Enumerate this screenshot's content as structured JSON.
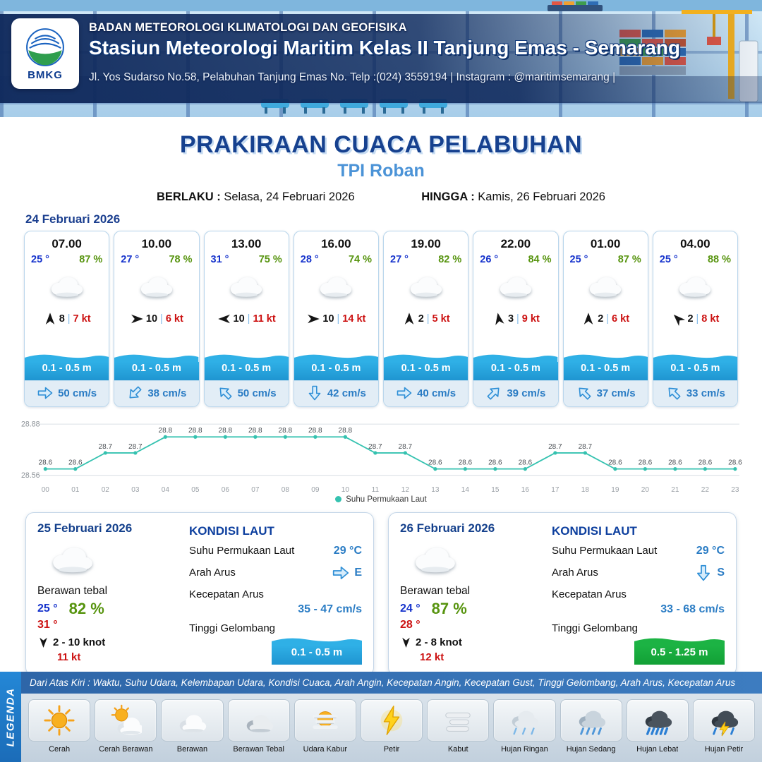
{
  "header": {
    "logo_text": "BMKG",
    "org": "BADAN METEOROLOGI KLIMATOLOGI DAN GEOFISIKA",
    "station": "Stasiun Meteorologi Maritim Kelas II Tanjung Emas - Semarang",
    "address": "Jl. Yos Sudarso No.58, Pelabuhan Tanjung Emas No. Telp :(024) 3559194 | Instagram : @maritimsemarang |"
  },
  "title": {
    "main": "PRAKIRAAN CUACA PELABUHAN",
    "location": "TPI Roban",
    "berlaku_label": "BERLAKU :",
    "berlaku_value": "Selasa, 24 Februari 2026",
    "hingga_label": "HINGGA :",
    "hingga_value": "Kamis, 26 Februari 2026"
  },
  "forecast": {
    "date": "24 Februari 2026",
    "cards": [
      {
        "time": "07.00",
        "temp": "25 °",
        "rh": "87 %",
        "wind_speed": "8",
        "gust": "7 kt",
        "wind_dir_deg": 0,
        "wave": "0.1 - 0.5 m",
        "current": "50 cm/s",
        "current_dir_deg": 90
      },
      {
        "time": "10.00",
        "temp": "27 °",
        "rh": "78 %",
        "wind_speed": "10",
        "gust": "6 kt",
        "wind_dir_deg": 90,
        "wave": "0.1 - 0.5 m",
        "current": "38 cm/s",
        "current_dir_deg": 225
      },
      {
        "time": "13.00",
        "temp": "31 °",
        "rh": "75 %",
        "wind_speed": "10",
        "gust": "11 kt",
        "wind_dir_deg": 270,
        "wave": "0.1 - 0.5 m",
        "current": "50 cm/s",
        "current_dir_deg": 315
      },
      {
        "time": "16.00",
        "temp": "28 °",
        "rh": "74 %",
        "wind_speed": "10",
        "gust": "14 kt",
        "wind_dir_deg": 90,
        "wave": "0.1 - 0.5 m",
        "current": "42 cm/s",
        "current_dir_deg": 180
      },
      {
        "time": "19.00",
        "temp": "27 °",
        "rh": "82 %",
        "wind_speed": "2",
        "gust": "5 kt",
        "wind_dir_deg": 0,
        "wave": "0.1 - 0.5 m",
        "current": "40 cm/s",
        "current_dir_deg": 90
      },
      {
        "time": "22.00",
        "temp": "26 °",
        "rh": "84 %",
        "wind_speed": "3",
        "gust": "9 kt",
        "wind_dir_deg": 350,
        "wave": "0.1 - 0.5 m",
        "current": "39 cm/s",
        "current_dir_deg": 45
      },
      {
        "time": "01.00",
        "temp": "25 °",
        "rh": "87 %",
        "wind_speed": "2",
        "gust": "6 kt",
        "wind_dir_deg": 0,
        "wave": "0.1 - 0.5 m",
        "current": "37 cm/s",
        "current_dir_deg": 315
      },
      {
        "time": "04.00",
        "temp": "25 °",
        "rh": "88 %",
        "wind_speed": "2",
        "gust": "8 kt",
        "wind_dir_deg": 315,
        "wave": "0.1 - 0.5 m",
        "current": "33 cm/s",
        "current_dir_deg": 315
      }
    ]
  },
  "chart_data": {
    "type": "line",
    "x": [
      "00",
      "01",
      "02",
      "03",
      "04",
      "05",
      "06",
      "07",
      "08",
      "09",
      "10",
      "11",
      "12",
      "13",
      "14",
      "15",
      "16",
      "17",
      "18",
      "19",
      "20",
      "21",
      "22",
      "23"
    ],
    "series": [
      {
        "name": "Suhu Permukaan Laut",
        "color": "#35c2b0",
        "values": [
          28.6,
          28.6,
          28.7,
          28.7,
          28.8,
          28.8,
          28.8,
          28.8,
          28.8,
          28.8,
          28.8,
          28.7,
          28.7,
          28.6,
          28.6,
          28.6,
          28.6,
          28.7,
          28.7,
          28.6,
          28.6,
          28.6,
          28.6,
          28.6
        ]
      }
    ],
    "ylim": [
      28.56,
      28.88
    ],
    "yticks": [
      28.56,
      28.88
    ],
    "legend_position": "bottom",
    "grid": true
  },
  "daily": [
    {
      "date": "25 Februari 2026",
      "condition": "Berawan tebal",
      "temp_min": "25 °",
      "temp_max": "31 °",
      "rh": "82 %",
      "wind_dir_deg": 180,
      "wind_range": "2  - 10 knot",
      "gust": "11 kt",
      "sea": {
        "title": "KONDISI LAUT",
        "sst_label": "Suhu Permukaan Laut",
        "sst": "29 °C",
        "current_dir_label": "Arah Arus",
        "current_dir": "E",
        "current_dir_deg": 90,
        "current_speed_label": "Kecepatan Arus",
        "current_speed": "35 - 47 cm/s",
        "wave_label": "Tinggi Gelombang",
        "wave": "0.1 - 0.5 m",
        "wave_color": "#1f95d1",
        "wave_color_top": "#2fb0e6"
      }
    },
    {
      "date": "26 Februari 2026",
      "condition": "Berawan tebal",
      "temp_min": "24 °",
      "temp_max": "28 °",
      "rh": "87 %",
      "wind_dir_deg": 180,
      "wind_range": "2  - 8 knot",
      "gust": "12 kt",
      "sea": {
        "title": "KONDISI LAUT",
        "sst_label": "Suhu Permukaan Laut",
        "sst": "29 °C",
        "current_dir_label": "Arah Arus",
        "current_dir": "S",
        "current_dir_deg": 180,
        "current_speed_label": "Kecepatan Arus",
        "current_speed": "33 - 68 cm/s",
        "wave_label": "Tinggi Gelombang",
        "wave": "0.5 - 1.25 m",
        "wave_color": "#12a035",
        "wave_color_top": "#1cb344"
      }
    }
  ],
  "legend": {
    "title": "LEGENDA",
    "description": "Dari Atas Kiri : Waktu, Suhu Udara, Kelembapan Udara, Kondisi Cuaca, Arah Angin, Kecepatan Angin, Kecepatan Gust, Tinggi Gelombang, Arah Arus, Kecepatan Arus",
    "items": [
      {
        "label": "Cerah",
        "icon": "sun"
      },
      {
        "label": "Cerah Berawan",
        "icon": "sun-cloud"
      },
      {
        "label": "Berawan",
        "icon": "cloud"
      },
      {
        "label": "Berawan Tebal",
        "icon": "cloud-thick"
      },
      {
        "label": "Udara Kabur",
        "icon": "haze"
      },
      {
        "label": "Petir",
        "icon": "lightning"
      },
      {
        "label": "Kabut",
        "icon": "fog"
      },
      {
        "label": "Hujan Ringan",
        "icon": "rain-light"
      },
      {
        "label": "Hujan Sedang",
        "icon": "rain-moderate"
      },
      {
        "label": "Hujan Lebat",
        "icon": "rain-heavy"
      },
      {
        "label": "Hujan Petir",
        "icon": "rain-thunder"
      }
    ]
  },
  "colors": {
    "navy": "#0f295c",
    "title_blue": "#16418f",
    "location_blue": "#4b93d7",
    "temp_blue": "#1633cc",
    "humidity_green": "#57940f",
    "gust_red": "#cc1111",
    "wave_blue": "#1f95d1",
    "wave_green": "#12a035",
    "current_blue": "#2a7cc4",
    "chart_teal": "#35c2b0"
  }
}
